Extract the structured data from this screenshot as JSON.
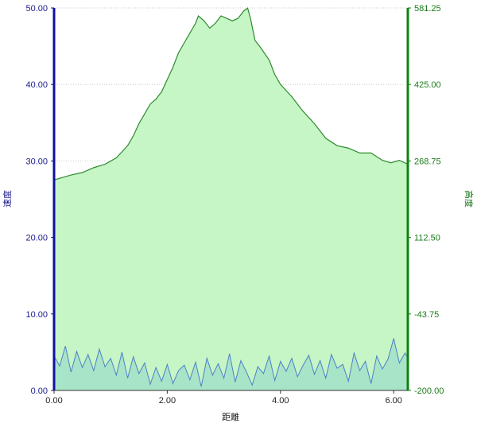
{
  "chart_data": {
    "type": "area",
    "title": "",
    "xlabel": "距離",
    "ylabel_left": "速度",
    "ylabel_right": "高度",
    "xlim": [
      0,
      6.25
    ],
    "ylim_left": [
      0,
      50
    ],
    "ylim_right": [
      -200,
      581.25
    ],
    "x_ticks": [
      "0.00",
      "2.00",
      "4.00",
      "6.00"
    ],
    "y_ticks_left": [
      "0.00",
      "10.00",
      "20.00",
      "30.00",
      "40.00",
      "50.00"
    ],
    "y_ticks_right": [
      "-200.00",
      "-43.75",
      "112.50",
      "268.75",
      "425.00",
      "581.25"
    ],
    "grid": true,
    "colors": {
      "left_axis": "#1010a0",
      "right_axis": "#108010",
      "area_fill": "#c6f5c6",
      "area_line": "#2e8b2e",
      "speed_line": "#4f7fc8",
      "speed_fill": "#a8e4c8"
    },
    "series": [
      {
        "axis": "right",
        "x": [
          0.0,
          0.15,
          0.3,
          0.5,
          0.7,
          0.9,
          1.1,
          1.3,
          1.4,
          1.5,
          1.6,
          1.7,
          1.8,
          1.9,
          2.0,
          2.1,
          2.2,
          2.3,
          2.4,
          2.5,
          2.55,
          2.65,
          2.75,
          2.85,
          2.95,
          3.05,
          3.15,
          3.25,
          3.35,
          3.42,
          3.47,
          3.55,
          3.65,
          3.8,
          3.9,
          4.0,
          4.2,
          4.4,
          4.6,
          4.8,
          5.0,
          5.2,
          5.4,
          5.6,
          5.8,
          5.95,
          6.1,
          6.25
        ],
        "values": [
          230,
          235,
          240,
          245,
          255,
          262,
          275,
          300,
          320,
          345,
          365,
          385,
          395,
          410,
          435,
          460,
          490,
          510,
          530,
          550,
          565,
          555,
          540,
          550,
          565,
          560,
          555,
          560,
          575,
          581,
          560,
          515,
          500,
          475,
          445,
          425,
          400,
          370,
          345,
          315,
          300,
          295,
          285,
          285,
          270,
          265,
          270,
          262
        ]
      },
      {
        "axis": "left",
        "x": [
          0.0,
          0.1,
          0.2,
          0.3,
          0.4,
          0.5,
          0.6,
          0.7,
          0.8,
          0.9,
          1.0,
          1.1,
          1.2,
          1.3,
          1.4,
          1.5,
          1.6,
          1.7,
          1.8,
          1.9,
          2.0,
          2.1,
          2.2,
          2.3,
          2.4,
          2.5,
          2.6,
          2.7,
          2.8,
          2.9,
          3.0,
          3.1,
          3.2,
          3.3,
          3.4,
          3.5,
          3.6,
          3.7,
          3.8,
          3.9,
          4.0,
          4.1,
          4.2,
          4.3,
          4.4,
          4.5,
          4.6,
          4.7,
          4.8,
          4.9,
          5.0,
          5.1,
          5.2,
          5.3,
          5.4,
          5.5,
          5.6,
          5.7,
          5.8,
          5.9,
          6.0,
          6.1,
          6.2,
          6.25
        ],
        "values": [
          4.5,
          3.2,
          5.8,
          2.4,
          5.1,
          3.0,
          4.7,
          2.6,
          5.4,
          3.1,
          4.2,
          2.0,
          5.0,
          1.6,
          4.4,
          2.2,
          3.6,
          0.8,
          3.0,
          1.2,
          3.4,
          0.9,
          2.6,
          3.3,
          1.4,
          3.7,
          0.5,
          4.2,
          2.0,
          3.5,
          1.6,
          4.8,
          1.1,
          3.9,
          2.4,
          0.7,
          3.1,
          2.2,
          4.5,
          1.3,
          3.8,
          2.5,
          4.2,
          1.8,
          3.3,
          4.6,
          2.1,
          3.9,
          1.6,
          4.7,
          2.9,
          3.4,
          1.2,
          4.9,
          2.6,
          3.8,
          0.9,
          4.5,
          2.8,
          4.1,
          6.8,
          3.6,
          4.9,
          4.2
        ]
      }
    ]
  }
}
